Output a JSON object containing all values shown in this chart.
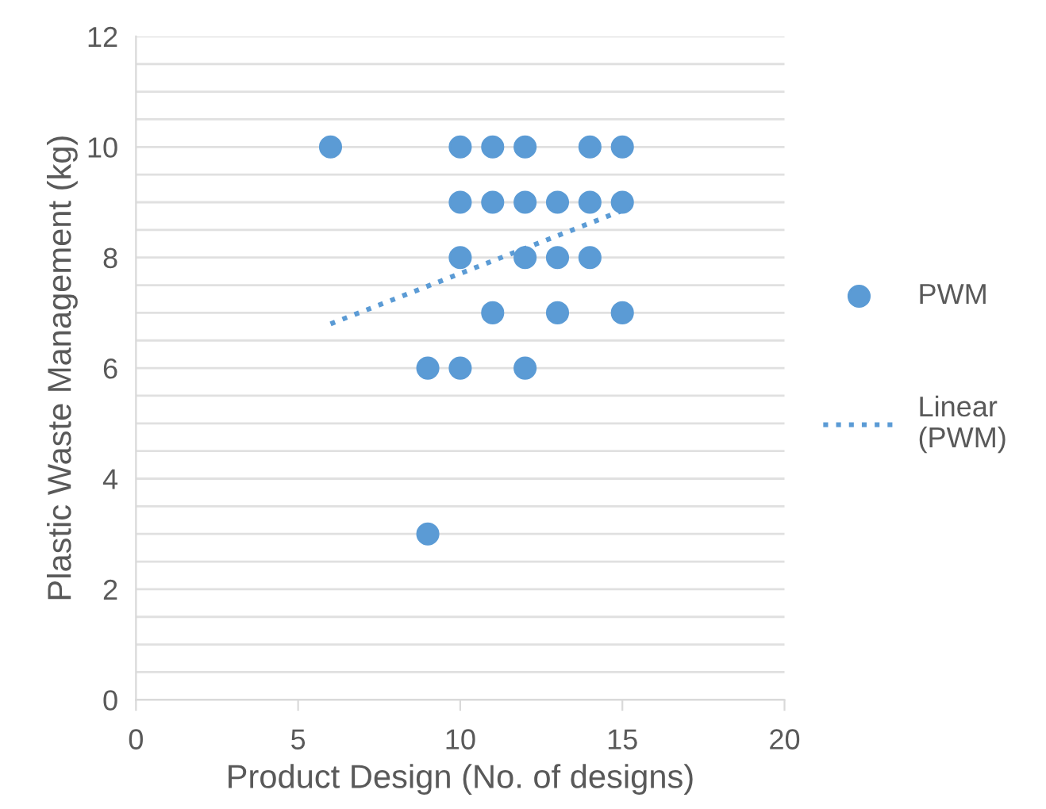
{
  "chart_data": {
    "type": "scatter",
    "xlabel": "Product Design (No. of designs)",
    "ylabel": "Plastic Waste Management (kg)",
    "xlim": [
      0,
      20
    ],
    "xticks": [
      0,
      5,
      10,
      15,
      20
    ],
    "ylim": [
      0,
      12
    ],
    "yticks": [
      0,
      {
        "value": 0.5,
        "label": null
      },
      2,
      {
        "value": 1.5,
        "label": null
      },
      {
        "value": 1,
        "label": null
      },
      {
        "value": 2.5,
        "label": null
      },
      {
        "value": 3,
        "label": null
      },
      {
        "value": 3.5,
        "label": null
      },
      4,
      {
        "value": 4.5,
        "label": null
      },
      {
        "value": 5,
        "label": null
      },
      {
        "value": 5.5,
        "label": null
      },
      6,
      {
        "value": 6.5,
        "label": null
      },
      {
        "value": 7,
        "label": null
      },
      {
        "value": 7.5,
        "label": null
      },
      8,
      {
        "value": 8.5,
        "label": null
      },
      {
        "value": 9,
        "label": null
      },
      {
        "value": 9.5,
        "label": null
      },
      10,
      {
        "value": 10.5,
        "label": null
      },
      {
        "value": 11,
        "label": null
      },
      {
        "value": 11.5,
        "label": null
      },
      12
    ],
    "grid": "y",
    "legend": "right",
    "series": [
      {
        "name": "PWM",
        "color": "#5b9bd5",
        "marker": "circle",
        "x": [
          6,
          10,
          11,
          12,
          14,
          15,
          10,
          11,
          12,
          13,
          14,
          15,
          10,
          12,
          13,
          14,
          11,
          13,
          15,
          9,
          10,
          12,
          9
        ],
        "values": [
          10,
          10,
          10,
          10,
          10,
          10,
          9,
          9,
          9,
          9,
          9,
          9,
          8,
          8,
          8,
          8,
          7,
          7,
          7,
          6,
          6,
          6,
          3
        ]
      },
      {
        "name": "Linear\n(PWM)",
        "type": "line",
        "color": "#5b9bd5",
        "line_style": "dotted",
        "marker": "none",
        "x": [
          6,
          15
        ],
        "values": [
          6.8,
          8.85
        ]
      }
    ]
  }
}
